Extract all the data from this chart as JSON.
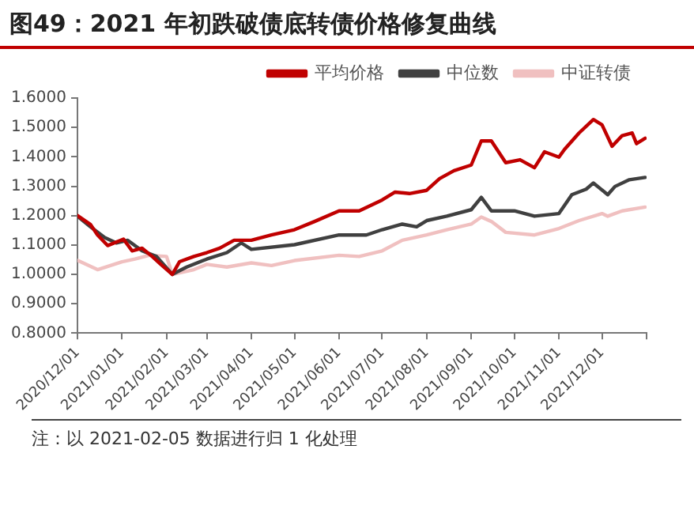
{
  "chart_data": {
    "type": "line",
    "title": "图49：2021 年初跌破债底转债价格修复曲线",
    "annotations": [
      "注：以 2021-02-05 数据进行归 1 化处理"
    ],
    "xlim": [
      "2020-12-01",
      "2022-01-01"
    ],
    "xticks": [
      {
        "value": "2020-12-01",
        "label": "2020/12/01"
      },
      {
        "value": "2021-01-01",
        "label": "2021/01/01"
      },
      {
        "value": "2021-02-01",
        "label": "2021/02/01"
      },
      {
        "value": "2021-03-01",
        "label": "2021/03/01"
      },
      {
        "value": "2021-04-01",
        "label": "2021/04/01"
      },
      {
        "value": "2021-05-01",
        "label": "2021/05/01"
      },
      {
        "value": "2021-06-01",
        "label": "2021/06/01"
      },
      {
        "value": "2021-07-01",
        "label": "2021/07/01"
      },
      {
        "value": "2021-08-01",
        "label": "2021/08/01"
      },
      {
        "value": "2021-09-01",
        "label": "2021/09/01"
      },
      {
        "value": "2021-10-01",
        "label": "2021/10/01"
      },
      {
        "value": "2021-11-01",
        "label": "2021/11/01"
      },
      {
        "value": "2021-12-01",
        "label": "2021/12/01"
      },
      {
        "value": "2022-01-01",
        "label": null
      }
    ],
    "ylim": [
      0.8,
      1.6
    ],
    "yticks": [
      {
        "value": 0.8,
        "label": "0.8000"
      },
      {
        "value": 0.9,
        "label": "0.9000"
      },
      {
        "value": 1.0,
        "label": "1.0000"
      },
      {
        "value": 1.1,
        "label": "1.1000"
      },
      {
        "value": 1.2,
        "label": "1.2000"
      },
      {
        "value": 1.3,
        "label": "1.3000"
      },
      {
        "value": 1.4,
        "label": "1.4000"
      },
      {
        "value": 1.5,
        "label": "1.5000"
      },
      {
        "value": 1.6,
        "label": "1.6000"
      }
    ],
    "grid": false,
    "legend": "top",
    "marker": "none",
    "line_style": "solid",
    "series": [
      {
        "name": "平均价格",
        "color": "#c00000",
        "x": [
          "2020-12-01",
          "2020-12-10",
          "2020-12-15",
          "2020-12-22",
          "2021-01-02",
          "2021-01-08",
          "2021-01-15",
          "2021-01-22",
          "2021-01-28",
          "2021-02-05",
          "2021-02-10",
          "2021-02-20",
          "2021-03-01",
          "2021-03-10",
          "2021-03-20",
          "2021-04-01",
          "2021-04-15",
          "2021-05-01",
          "2021-05-15",
          "2021-06-01",
          "2021-06-15",
          "2021-07-01",
          "2021-07-10",
          "2021-07-20",
          "2021-08-01",
          "2021-08-10",
          "2021-08-20",
          "2021-09-01",
          "2021-09-08",
          "2021-09-15",
          "2021-09-20",
          "2021-09-25",
          "2021-10-05",
          "2021-10-15",
          "2021-10-22",
          "2021-11-01",
          "2021-11-05",
          "2021-11-15",
          "2021-11-25",
          "2021-12-01",
          "2021-12-08",
          "2021-12-15",
          "2021-12-22",
          "2021-12-25",
          "2021-12-31"
        ],
        "values": [
          1.2,
          1.17,
          1.134,
          1.098,
          1.12,
          1.08,
          1.089,
          1.061,
          1.034,
          1.0,
          1.043,
          1.061,
          1.074,
          1.089,
          1.116,
          1.116,
          1.134,
          1.152,
          1.18,
          1.216,
          1.216,
          1.253,
          1.28,
          1.275,
          1.286,
          1.326,
          1.353,
          1.372,
          1.454,
          1.454,
          1.417,
          1.38,
          1.39,
          1.363,
          1.417,
          1.399,
          1.426,
          1.481,
          1.527,
          1.509,
          1.436,
          1.472,
          1.481,
          1.445,
          1.463
        ]
      },
      {
        "name": "中位数",
        "color": "#404040",
        "x": [
          "2020-12-01",
          "2020-12-10",
          "2020-12-20",
          "2020-12-28",
          "2021-01-05",
          "2021-01-15",
          "2021-01-25",
          "2021-02-05",
          "2021-02-15",
          "2021-03-01",
          "2021-03-15",
          "2021-03-25",
          "2021-04-01",
          "2021-05-01",
          "2021-06-01",
          "2021-06-20",
          "2021-07-01",
          "2021-07-15",
          "2021-07-25",
          "2021-08-01",
          "2021-08-15",
          "2021-09-01",
          "2021-09-08",
          "2021-09-15",
          "2021-10-01",
          "2021-10-15",
          "2021-11-01",
          "2021-11-10",
          "2021-11-20",
          "2021-11-25",
          "2021-12-05",
          "2021-12-10",
          "2021-12-20",
          "2021-12-31"
        ],
        "values": [
          1.198,
          1.162,
          1.125,
          1.107,
          1.116,
          1.08,
          1.061,
          1.0,
          1.025,
          1.052,
          1.074,
          1.107,
          1.085,
          1.101,
          1.134,
          1.134,
          1.152,
          1.171,
          1.162,
          1.183,
          1.198,
          1.22,
          1.262,
          1.216,
          1.216,
          1.198,
          1.207,
          1.271,
          1.29,
          1.311,
          1.271,
          1.299,
          1.322,
          1.33
        ]
      },
      {
        "name": "中证转债",
        "color": "#f0c0c0",
        "x": [
          "2020-12-01",
          "2020-12-15",
          "2021-01-01",
          "2021-01-10",
          "2021-01-20",
          "2021-02-01",
          "2021-02-05",
          "2021-02-20",
          "2021-03-01",
          "2021-03-15",
          "2021-04-01",
          "2021-04-15",
          "2021-05-01",
          "2021-06-01",
          "2021-06-15",
          "2021-07-01",
          "2021-07-15",
          "2021-08-01",
          "2021-08-15",
          "2021-09-01",
          "2021-09-08",
          "2021-09-15",
          "2021-09-25",
          "2021-10-15",
          "2021-11-01",
          "2021-11-15",
          "2021-12-01",
          "2021-12-05",
          "2021-12-15",
          "2021-12-31"
        ],
        "values": [
          1.048,
          1.016,
          1.043,
          1.052,
          1.065,
          1.061,
          1.0,
          1.016,
          1.034,
          1.025,
          1.039,
          1.03,
          1.047,
          1.065,
          1.061,
          1.08,
          1.116,
          1.134,
          1.152,
          1.171,
          1.195,
          1.18,
          1.143,
          1.134,
          1.156,
          1.183,
          1.207,
          1.198,
          1.216,
          1.229
        ]
      }
    ]
  }
}
